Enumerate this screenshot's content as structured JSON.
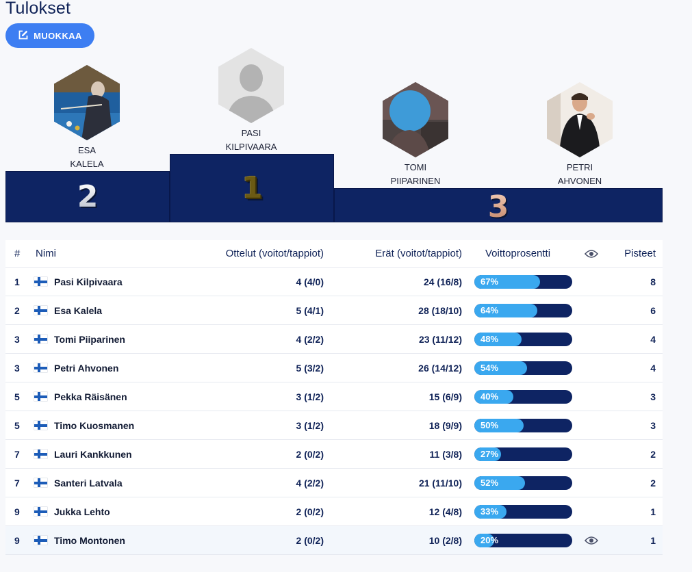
{
  "page": {
    "title": "Tulokset",
    "edit_button": "MUOKKAA"
  },
  "podium": [
    {
      "place": "2",
      "first": "ESA",
      "last": "KALELA",
      "avatar": "photo-billiards"
    },
    {
      "place": "1",
      "first": "PASI",
      "last": "KILPIVAARA",
      "avatar": "placeholder-silhouette"
    },
    {
      "place": "3",
      "first": "TOMI",
      "last": "PIIPARINEN",
      "avatar": "photo-blurred"
    },
    {
      "place": "3",
      "first": "PETRI",
      "last": "AHVONEN",
      "avatar": "photo-suit"
    }
  ],
  "table": {
    "headers": {
      "rank": "#",
      "name": "Nimi",
      "matches": "Ottelut (voitot/tappiot)",
      "sets": "Erät (voitot/tappiot)",
      "win": "Voittoprosentti",
      "eye_icon": "eye-icon",
      "points": "Pisteet"
    },
    "rows": [
      {
        "rank": "1",
        "name": "Pasi Kilpivaara",
        "matches": "4 (4/0)",
        "sets": "24 (16/8)",
        "win_label": "67%",
        "win": 0.67,
        "points": "8"
      },
      {
        "rank": "2",
        "name": "Esa Kalela",
        "matches": "5 (4/1)",
        "sets": "28 (18/10)",
        "win_label": "64%",
        "win": 0.64,
        "points": "6"
      },
      {
        "rank": "3",
        "name": "Tomi Piiparinen",
        "matches": "4 (2/2)",
        "sets": "23 (11/12)",
        "win_label": "48%",
        "win": 0.48,
        "points": "4"
      },
      {
        "rank": "3",
        "name": "Petri Ahvonen",
        "matches": "5 (3/2)",
        "sets": "26 (14/12)",
        "win_label": "54%",
        "win": 0.54,
        "points": "4"
      },
      {
        "rank": "5",
        "name": "Pekka Räisänen",
        "matches": "3 (1/2)",
        "sets": "15 (6/9)",
        "win_label": "40%",
        "win": 0.4,
        "points": "3"
      },
      {
        "rank": "5",
        "name": "Timo Kuosmanen",
        "matches": "3 (1/2)",
        "sets": "18 (9/9)",
        "win_label": "50%",
        "win": 0.5,
        "points": "3"
      },
      {
        "rank": "7",
        "name": "Lauri Kankkunen",
        "matches": "2 (0/2)",
        "sets": "11 (3/8)",
        "win_label": "27%",
        "win": 0.27,
        "points": "2"
      },
      {
        "rank": "7",
        "name": "Santeri Latvala",
        "matches": "4 (2/2)",
        "sets": "21 (11/10)",
        "win_label": "52%",
        "win": 0.52,
        "points": "2"
      },
      {
        "rank": "9",
        "name": "Jukka Lehto",
        "matches": "2 (0/2)",
        "sets": "12 (4/8)",
        "win_label": "33%",
        "win": 0.33,
        "points": "1"
      },
      {
        "rank": "9",
        "name": "Timo Montonen",
        "matches": "2 (0/2)",
        "sets": "10 (2/8)",
        "win_label": "20%",
        "win": 0.2,
        "points": "1",
        "hovered": true
      }
    ]
  },
  "colors": {
    "navy": "#0e2463",
    "accent": "#3d7ef2",
    "bar_fill": "#3aa8ef",
    "flag_blue": "#1c5cb8"
  }
}
